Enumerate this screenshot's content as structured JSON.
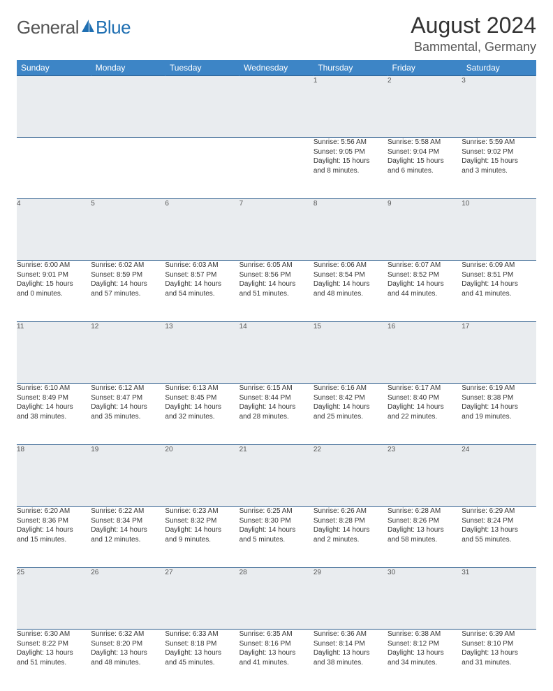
{
  "logo": {
    "general": "General",
    "blue": "Blue"
  },
  "title": "August 2024",
  "location": "Bammental, Germany",
  "columns": [
    "Sunday",
    "Monday",
    "Tuesday",
    "Wednesday",
    "Thursday",
    "Friday",
    "Saturday"
  ],
  "colors": {
    "header_bg": "#3d85c6",
    "header_text": "#ffffff",
    "daynum_bg": "#e9ecef",
    "border": "#2a5a8a",
    "logo_blue": "#1f6fb2",
    "text": "#333333"
  },
  "weeks": [
    [
      {
        "n": "",
        "sr": "",
        "ss": "",
        "dl1": "",
        "dl2": ""
      },
      {
        "n": "",
        "sr": "",
        "ss": "",
        "dl1": "",
        "dl2": ""
      },
      {
        "n": "",
        "sr": "",
        "ss": "",
        "dl1": "",
        "dl2": ""
      },
      {
        "n": "",
        "sr": "",
        "ss": "",
        "dl1": "",
        "dl2": ""
      },
      {
        "n": "1",
        "sr": "Sunrise: 5:56 AM",
        "ss": "Sunset: 9:05 PM",
        "dl1": "Daylight: 15 hours",
        "dl2": "and 8 minutes."
      },
      {
        "n": "2",
        "sr": "Sunrise: 5:58 AM",
        "ss": "Sunset: 9:04 PM",
        "dl1": "Daylight: 15 hours",
        "dl2": "and 6 minutes."
      },
      {
        "n": "3",
        "sr": "Sunrise: 5:59 AM",
        "ss": "Sunset: 9:02 PM",
        "dl1": "Daylight: 15 hours",
        "dl2": "and 3 minutes."
      }
    ],
    [
      {
        "n": "4",
        "sr": "Sunrise: 6:00 AM",
        "ss": "Sunset: 9:01 PM",
        "dl1": "Daylight: 15 hours",
        "dl2": "and 0 minutes."
      },
      {
        "n": "5",
        "sr": "Sunrise: 6:02 AM",
        "ss": "Sunset: 8:59 PM",
        "dl1": "Daylight: 14 hours",
        "dl2": "and 57 minutes."
      },
      {
        "n": "6",
        "sr": "Sunrise: 6:03 AM",
        "ss": "Sunset: 8:57 PM",
        "dl1": "Daylight: 14 hours",
        "dl2": "and 54 minutes."
      },
      {
        "n": "7",
        "sr": "Sunrise: 6:05 AM",
        "ss": "Sunset: 8:56 PM",
        "dl1": "Daylight: 14 hours",
        "dl2": "and 51 minutes."
      },
      {
        "n": "8",
        "sr": "Sunrise: 6:06 AM",
        "ss": "Sunset: 8:54 PM",
        "dl1": "Daylight: 14 hours",
        "dl2": "and 48 minutes."
      },
      {
        "n": "9",
        "sr": "Sunrise: 6:07 AM",
        "ss": "Sunset: 8:52 PM",
        "dl1": "Daylight: 14 hours",
        "dl2": "and 44 minutes."
      },
      {
        "n": "10",
        "sr": "Sunrise: 6:09 AM",
        "ss": "Sunset: 8:51 PM",
        "dl1": "Daylight: 14 hours",
        "dl2": "and 41 minutes."
      }
    ],
    [
      {
        "n": "11",
        "sr": "Sunrise: 6:10 AM",
        "ss": "Sunset: 8:49 PM",
        "dl1": "Daylight: 14 hours",
        "dl2": "and 38 minutes."
      },
      {
        "n": "12",
        "sr": "Sunrise: 6:12 AM",
        "ss": "Sunset: 8:47 PM",
        "dl1": "Daylight: 14 hours",
        "dl2": "and 35 minutes."
      },
      {
        "n": "13",
        "sr": "Sunrise: 6:13 AM",
        "ss": "Sunset: 8:45 PM",
        "dl1": "Daylight: 14 hours",
        "dl2": "and 32 minutes."
      },
      {
        "n": "14",
        "sr": "Sunrise: 6:15 AM",
        "ss": "Sunset: 8:44 PM",
        "dl1": "Daylight: 14 hours",
        "dl2": "and 28 minutes."
      },
      {
        "n": "15",
        "sr": "Sunrise: 6:16 AM",
        "ss": "Sunset: 8:42 PM",
        "dl1": "Daylight: 14 hours",
        "dl2": "and 25 minutes."
      },
      {
        "n": "16",
        "sr": "Sunrise: 6:17 AM",
        "ss": "Sunset: 8:40 PM",
        "dl1": "Daylight: 14 hours",
        "dl2": "and 22 minutes."
      },
      {
        "n": "17",
        "sr": "Sunrise: 6:19 AM",
        "ss": "Sunset: 8:38 PM",
        "dl1": "Daylight: 14 hours",
        "dl2": "and 19 minutes."
      }
    ],
    [
      {
        "n": "18",
        "sr": "Sunrise: 6:20 AM",
        "ss": "Sunset: 8:36 PM",
        "dl1": "Daylight: 14 hours",
        "dl2": "and 15 minutes."
      },
      {
        "n": "19",
        "sr": "Sunrise: 6:22 AM",
        "ss": "Sunset: 8:34 PM",
        "dl1": "Daylight: 14 hours",
        "dl2": "and 12 minutes."
      },
      {
        "n": "20",
        "sr": "Sunrise: 6:23 AM",
        "ss": "Sunset: 8:32 PM",
        "dl1": "Daylight: 14 hours",
        "dl2": "and 9 minutes."
      },
      {
        "n": "21",
        "sr": "Sunrise: 6:25 AM",
        "ss": "Sunset: 8:30 PM",
        "dl1": "Daylight: 14 hours",
        "dl2": "and 5 minutes."
      },
      {
        "n": "22",
        "sr": "Sunrise: 6:26 AM",
        "ss": "Sunset: 8:28 PM",
        "dl1": "Daylight: 14 hours",
        "dl2": "and 2 minutes."
      },
      {
        "n": "23",
        "sr": "Sunrise: 6:28 AM",
        "ss": "Sunset: 8:26 PM",
        "dl1": "Daylight: 13 hours",
        "dl2": "and 58 minutes."
      },
      {
        "n": "24",
        "sr": "Sunrise: 6:29 AM",
        "ss": "Sunset: 8:24 PM",
        "dl1": "Daylight: 13 hours",
        "dl2": "and 55 minutes."
      }
    ],
    [
      {
        "n": "25",
        "sr": "Sunrise: 6:30 AM",
        "ss": "Sunset: 8:22 PM",
        "dl1": "Daylight: 13 hours",
        "dl2": "and 51 minutes."
      },
      {
        "n": "26",
        "sr": "Sunrise: 6:32 AM",
        "ss": "Sunset: 8:20 PM",
        "dl1": "Daylight: 13 hours",
        "dl2": "and 48 minutes."
      },
      {
        "n": "27",
        "sr": "Sunrise: 6:33 AM",
        "ss": "Sunset: 8:18 PM",
        "dl1": "Daylight: 13 hours",
        "dl2": "and 45 minutes."
      },
      {
        "n": "28",
        "sr": "Sunrise: 6:35 AM",
        "ss": "Sunset: 8:16 PM",
        "dl1": "Daylight: 13 hours",
        "dl2": "and 41 minutes."
      },
      {
        "n": "29",
        "sr": "Sunrise: 6:36 AM",
        "ss": "Sunset: 8:14 PM",
        "dl1": "Daylight: 13 hours",
        "dl2": "and 38 minutes."
      },
      {
        "n": "30",
        "sr": "Sunrise: 6:38 AM",
        "ss": "Sunset: 8:12 PM",
        "dl1": "Daylight: 13 hours",
        "dl2": "and 34 minutes."
      },
      {
        "n": "31",
        "sr": "Sunrise: 6:39 AM",
        "ss": "Sunset: 8:10 PM",
        "dl1": "Daylight: 13 hours",
        "dl2": "and 31 minutes."
      }
    ]
  ]
}
